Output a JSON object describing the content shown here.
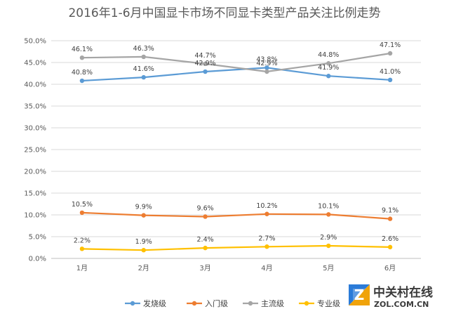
{
  "chart_data": {
    "type": "line",
    "title": "2016年1-6月中国显卡市场不同显卡类型产品关注比例走势",
    "categories": [
      "1月",
      "2月",
      "3月",
      "4月",
      "5月",
      "6月"
    ],
    "y_ticks": [
      "0.0%",
      "5.0%",
      "10.0%",
      "15.0%",
      "20.0%",
      "25.0%",
      "30.0%",
      "35.0%",
      "40.0%",
      "45.0%",
      "50.0%"
    ],
    "ylim": [
      0,
      50
    ],
    "grid": true,
    "legend_position": "bottom",
    "series": [
      {
        "name": "发烧级",
        "color": "#5B9BD5",
        "values": [
          40.8,
          41.6,
          42.9,
          43.8,
          41.9,
          41.0
        ],
        "labels": [
          "40.8%",
          "41.6%",
          "42.9%",
          "43.8%",
          "41.9%",
          "41.0%"
        ]
      },
      {
        "name": "入门级",
        "color": "#ED7D31",
        "values": [
          10.5,
          9.9,
          9.6,
          10.2,
          10.1,
          9.1
        ],
        "labels": [
          "10.5%",
          "9.9%",
          "9.6%",
          "10.2%",
          "10.1%",
          "9.1%"
        ]
      },
      {
        "name": "主流级",
        "color": "#A5A5A5",
        "values": [
          46.1,
          46.3,
          44.7,
          42.9,
          44.8,
          47.1
        ],
        "labels": [
          "46.1%",
          "46.3%",
          "44.7%",
          "42.9%",
          "44.8%",
          "47.1%"
        ]
      },
      {
        "name": "专业级",
        "color": "#FFC000",
        "values": [
          2.2,
          1.9,
          2.4,
          2.7,
          2.9,
          2.6
        ],
        "labels": [
          "2.2%",
          "1.9%",
          "2.4%",
          "2.7%",
          "2.9%",
          "2.6%"
        ]
      }
    ]
  },
  "watermark": {
    "name_cn": "中关村在线",
    "domain": "ZOL.COM.CN",
    "logo_letter": "Z",
    "logo_colors": [
      "#2b7bd8",
      "#f0a30a",
      "#7cc043"
    ]
  }
}
